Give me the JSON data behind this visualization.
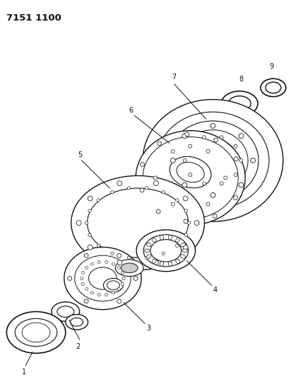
{
  "title": "7151 1100",
  "bg_color": "#ffffff",
  "line_color": "#111111",
  "figsize": [
    4.29,
    5.33
  ],
  "dpi": 100,
  "lw": 0.8,
  "aspect": 0.62
}
